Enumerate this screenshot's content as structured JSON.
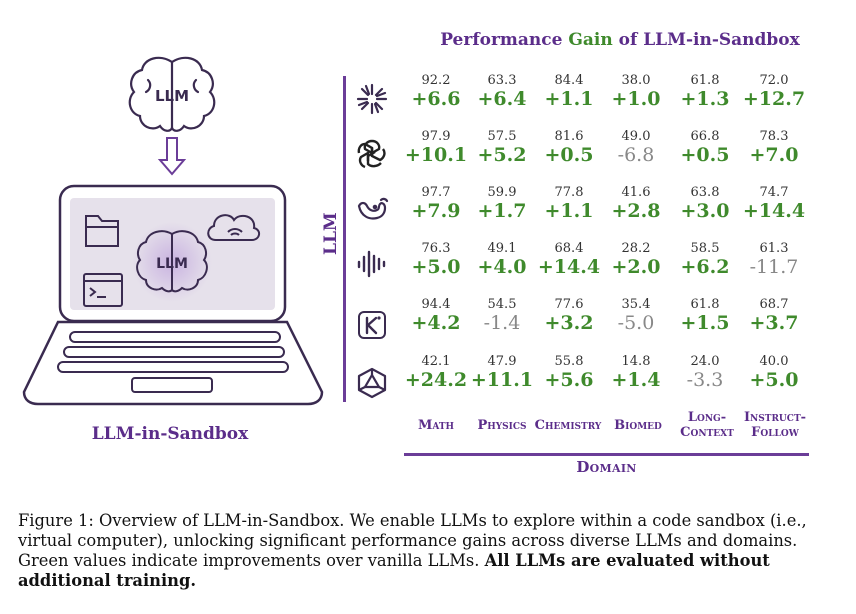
{
  "illustration": {
    "brain_label": "LLM",
    "screen_brain_label": "LLM",
    "caption_label": "LLM-in-Sandbox"
  },
  "chart_data": {
    "type": "table",
    "title_parts": [
      "Performance ",
      "Gain",
      " of LLM-in-Sandbox"
    ],
    "row_axis_label": "LLM",
    "column_axis_label": "Domain",
    "columns": [
      "Math",
      "Physics",
      "Chemistry",
      "Biomed",
      "Long-Context",
      "Instruct-Follow"
    ],
    "column_label_lines": [
      [
        "Math"
      ],
      [
        "Physics"
      ],
      [
        "Chemistry"
      ],
      [
        "Biomed"
      ],
      [
        "Long-",
        "Context"
      ],
      [
        "Instruct-",
        "Follow"
      ]
    ],
    "row_icons": [
      "starburst-icon",
      "openai-icon",
      "whale-icon",
      "waveform-icon",
      "kimi-icon",
      "qwen-icon"
    ],
    "rows": [
      {
        "base": [
          "92.2",
          "63.3",
          "84.4",
          "38.0",
          "61.8",
          "72.0"
        ],
        "gain": [
          "+6.6",
          "+6.4",
          "+1.1",
          "+1.0",
          "+1.3",
          "+12.7"
        ]
      },
      {
        "base": [
          "97.9",
          "57.5",
          "81.6",
          "49.0",
          "66.8",
          "78.3"
        ],
        "gain": [
          "+10.1",
          "+5.2",
          "+0.5",
          "-6.8",
          "+0.5",
          "+7.0"
        ]
      },
      {
        "base": [
          "97.7",
          "59.9",
          "77.8",
          "41.6",
          "63.8",
          "74.7"
        ],
        "gain": [
          "+7.9",
          "+1.7",
          "+1.1",
          "+2.8",
          "+3.0",
          "+14.4"
        ]
      },
      {
        "base": [
          "76.3",
          "49.1",
          "68.4",
          "28.2",
          "58.5",
          "61.3"
        ],
        "gain": [
          "+5.0",
          "+4.0",
          "+14.4",
          "+2.0",
          "+6.2",
          "-11.7"
        ]
      },
      {
        "base": [
          "94.4",
          "54.5",
          "77.6",
          "35.4",
          "61.8",
          "68.7"
        ],
        "gain": [
          "+4.2",
          "-1.4",
          "+3.2",
          "-5.0",
          "+1.5",
          "+3.7"
        ]
      },
      {
        "base": [
          "42.1",
          "47.9",
          "55.8",
          "14.8",
          "24.0",
          "40.0"
        ],
        "gain": [
          "+24.2",
          "+11.1",
          "+5.6",
          "+1.4",
          "-3.3",
          "+5.0"
        ]
      }
    ],
    "colors": {
      "positive": "#3f8a2c",
      "negative": "#888888",
      "accent": "#5b2d8a"
    }
  },
  "caption": {
    "text": "Figure 1: Overview of LLM-in-Sandbox. We enable LLMs to explore within a code sandbox (i.e., virtual computer), unlocking significant performance gains across diverse LLMs and domains. Green values indicate improvements over vanilla LLMs. ",
    "bold": "All LLMs are evaluated without additional training."
  }
}
